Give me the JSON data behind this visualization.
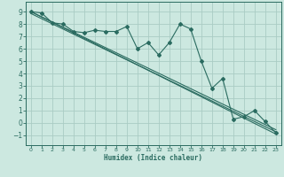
{
  "xlabel": "Humidex (Indice chaleur)",
  "xlim": [
    -0.5,
    23.5
  ],
  "ylim": [
    -1.8,
    9.8
  ],
  "xticks": [
    0,
    1,
    2,
    3,
    4,
    5,
    6,
    7,
    8,
    9,
    10,
    11,
    12,
    13,
    14,
    15,
    16,
    17,
    18,
    19,
    20,
    21,
    22,
    23
  ],
  "yticks": [
    -1,
    0,
    1,
    2,
    3,
    4,
    5,
    6,
    7,
    8,
    9
  ],
  "bg_color": "#cce8e0",
  "line_color": "#2a6b60",
  "grid_color": "#aaccc4",
  "data_x": [
    0,
    1,
    2,
    3,
    4,
    5,
    6,
    7,
    8,
    9,
    10,
    11,
    12,
    13,
    14,
    15,
    16,
    17,
    18,
    19,
    20,
    21,
    22,
    23
  ],
  "data_y_main": [
    9.0,
    8.9,
    8.1,
    8.0,
    7.4,
    7.3,
    7.5,
    7.4,
    7.4,
    7.8,
    6.0,
    6.5,
    5.5,
    6.5,
    8.0,
    7.6,
    5.0,
    2.8,
    3.6,
    0.3,
    0.5,
    1.0,
    0.1,
    -0.8
  ],
  "line1_y_start": 9.0,
  "line1_y_end": -0.9,
  "line2_y_start": 9.0,
  "line2_y_end": -0.55,
  "line3_y_start": 8.85,
  "line3_y_end": -0.72
}
